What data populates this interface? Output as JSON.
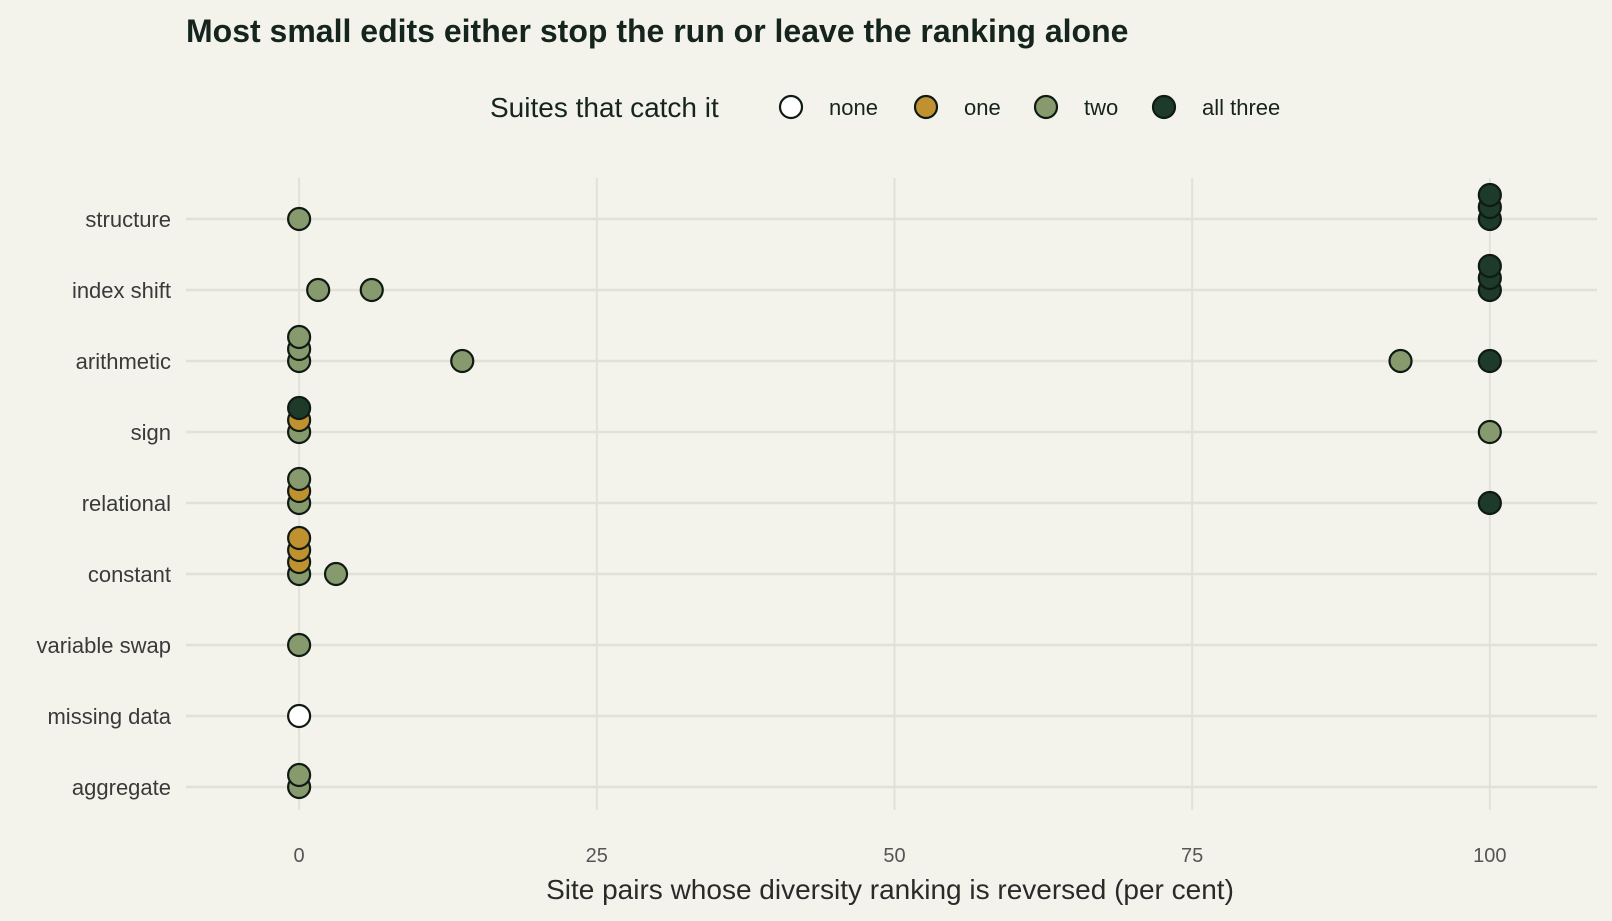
{
  "chart_data": {
    "type": "scatter",
    "title": "Most small edits either stop the run or leave the ranking alone",
    "xlabel": "Site pairs whose diversity ranking is reversed (per cent)",
    "ylabel": "",
    "xlim": [
      -9.5,
      109
    ],
    "xticks": [
      0,
      25,
      50,
      75,
      100
    ],
    "grid": true,
    "legend": {
      "title": "Suites that catch it",
      "placement": "top",
      "entries": [
        {
          "key": "none",
          "label": "none",
          "color": "#ffffff"
        },
        {
          "key": "one",
          "label": "one",
          "color": "#bf922f"
        },
        {
          "key": "two",
          "label": "two",
          "color": "#879a6d"
        },
        {
          "key": "all",
          "label": "all three",
          "color": "#1e3a29"
        }
      ]
    },
    "categories": [
      "structure",
      "index shift",
      "arithmetic",
      "sign",
      "relational",
      "constant",
      "variable swap",
      "missing data",
      "aggregate"
    ],
    "points": [
      {
        "category": "structure",
        "x": 0,
        "suites": "two",
        "stack": 0
      },
      {
        "category": "structure",
        "x": 100,
        "suites": "all",
        "stack": 0
      },
      {
        "category": "structure",
        "x": 100,
        "suites": "all",
        "stack": 1
      },
      {
        "category": "structure",
        "x": 100,
        "suites": "all",
        "stack": 2
      },
      {
        "category": "index shift",
        "x": 1.6,
        "suites": "two",
        "stack": 0
      },
      {
        "category": "index shift",
        "x": 6.1,
        "suites": "two",
        "stack": 0
      },
      {
        "category": "index shift",
        "x": 100,
        "suites": "all",
        "stack": 0
      },
      {
        "category": "index shift",
        "x": 100,
        "suites": "all",
        "stack": 1
      },
      {
        "category": "index shift",
        "x": 100,
        "suites": "all",
        "stack": 2
      },
      {
        "category": "arithmetic",
        "x": 0,
        "suites": "two",
        "stack": 0
      },
      {
        "category": "arithmetic",
        "x": 0,
        "suites": "two",
        "stack": 1
      },
      {
        "category": "arithmetic",
        "x": 0,
        "suites": "two",
        "stack": 2
      },
      {
        "category": "arithmetic",
        "x": 13.7,
        "suites": "two",
        "stack": 0
      },
      {
        "category": "arithmetic",
        "x": 92.5,
        "suites": "two",
        "stack": 0
      },
      {
        "category": "arithmetic",
        "x": 100,
        "suites": "all",
        "stack": 0
      },
      {
        "category": "sign",
        "x": 0,
        "suites": "two",
        "stack": 0
      },
      {
        "category": "sign",
        "x": 0,
        "suites": "one",
        "stack": 1
      },
      {
        "category": "sign",
        "x": 0,
        "suites": "all",
        "stack": 2
      },
      {
        "category": "sign",
        "x": 100,
        "suites": "two",
        "stack": 0
      },
      {
        "category": "relational",
        "x": 0,
        "suites": "two",
        "stack": 0
      },
      {
        "category": "relational",
        "x": 0,
        "suites": "one",
        "stack": 1
      },
      {
        "category": "relational",
        "x": 0,
        "suites": "two",
        "stack": 2
      },
      {
        "category": "relational",
        "x": 100,
        "suites": "all",
        "stack": 0
      },
      {
        "category": "constant",
        "x": 0,
        "suites": "two",
        "stack": 0
      },
      {
        "category": "constant",
        "x": 0,
        "suites": "one",
        "stack": 1
      },
      {
        "category": "constant",
        "x": 0,
        "suites": "one",
        "stack": 2
      },
      {
        "category": "constant",
        "x": 0,
        "suites": "one",
        "stack": 3
      },
      {
        "category": "constant",
        "x": 3.1,
        "suites": "two",
        "stack": 0
      },
      {
        "category": "variable swap",
        "x": 0,
        "suites": "two",
        "stack": 0
      },
      {
        "category": "missing data",
        "x": 0,
        "suites": "none",
        "stack": 0
      },
      {
        "category": "aggregate",
        "x": 0,
        "suites": "two",
        "stack": 0
      },
      {
        "category": "aggregate",
        "x": 0,
        "suites": "two",
        "stack": 1
      }
    ]
  }
}
